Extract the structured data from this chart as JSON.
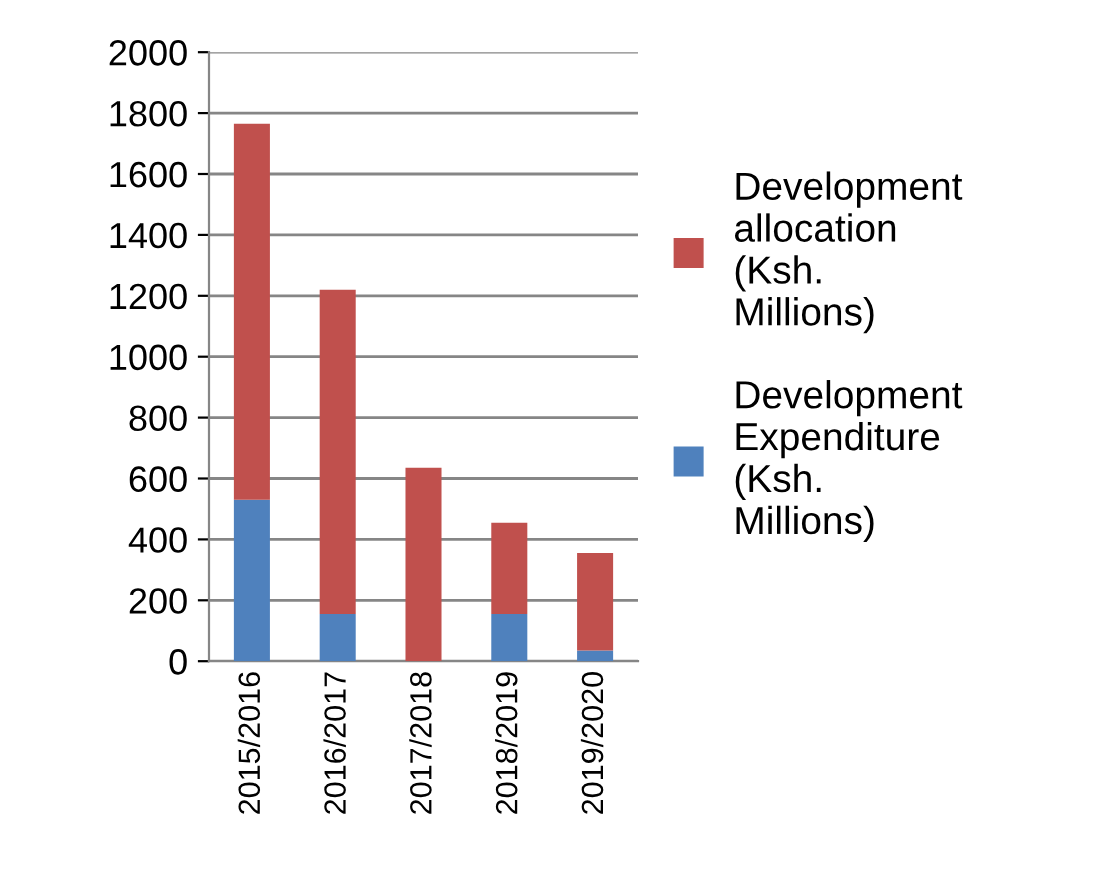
{
  "chart_data": {
    "type": "bar",
    "stacked": true,
    "categories": [
      "2015/2016",
      "2016/2017",
      "2017/2018",
      "2018/2019",
      "2019/2020"
    ],
    "series": [
      {
        "name": "Development Expenditure (Ksh. Millions)",
        "color": "#4f81bd",
        "values": [
          530,
          155,
          0,
          155,
          35
        ]
      },
      {
        "name": "Development allocation (Ksh. Millions)",
        "color": "#c0504d",
        "values": [
          1235,
          1065,
          635,
          300,
          320
        ]
      }
    ],
    "ylim": [
      0,
      2000
    ],
    "yticks": [
      0,
      200,
      400,
      600,
      800,
      1000,
      1200,
      1400,
      1600,
      1800,
      2000
    ],
    "grid": "y",
    "legend": "right"
  }
}
